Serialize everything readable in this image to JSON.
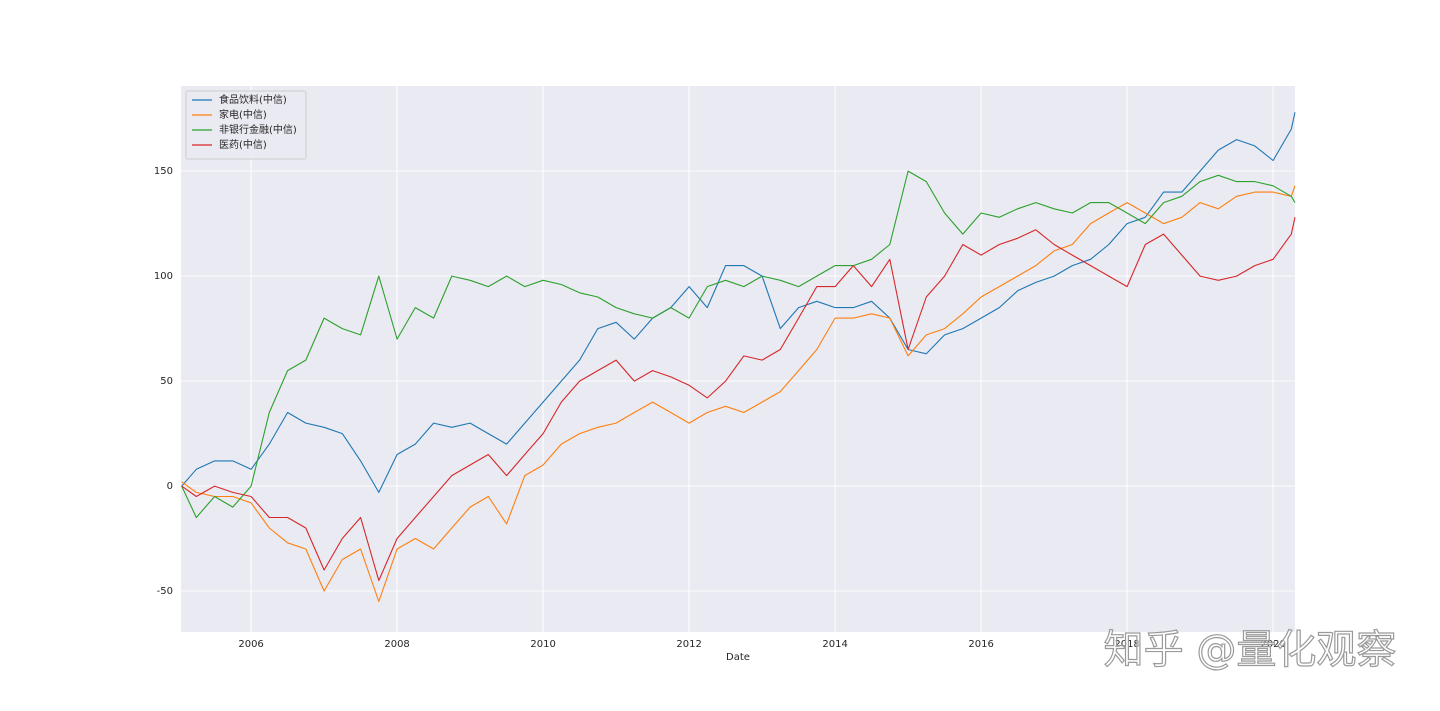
{
  "chart_data": {
    "type": "line",
    "x_label": "Date",
    "watermark": "知乎 @量化观察",
    "x": [
      2005.05,
      2005.25,
      2005.5,
      2005.75,
      2006,
      2006.25,
      2006.5,
      2006.75,
      2007,
      2007.25,
      2007.5,
      2007.75,
      2008,
      2008.25,
      2008.5,
      2008.75,
      2009,
      2009.25,
      2009.5,
      2009.75,
      2010,
      2010.25,
      2010.5,
      2010.75,
      2011,
      2011.25,
      2011.5,
      2011.75,
      2012,
      2012.25,
      2012.5,
      2012.75,
      2013,
      2013.25,
      2013.5,
      2013.75,
      2014,
      2014.25,
      2014.5,
      2014.75,
      2015,
      2015.25,
      2015.5,
      2015.75,
      2016,
      2016.25,
      2016.5,
      2016.75,
      2017,
      2017.25,
      2017.5,
      2017.75,
      2018,
      2018.25,
      2018.5,
      2018.75,
      2019,
      2019.25,
      2019.5,
      2019.75,
      2020,
      2020.25,
      2020.3
    ],
    "series": [
      {
        "name": "食品饮料(中信)",
        "color": "#1f77b4",
        "values": [
          0,
          8,
          12,
          12,
          8,
          20,
          35,
          30,
          28,
          25,
          12,
          -3,
          15,
          20,
          30,
          28,
          30,
          25,
          20,
          30,
          40,
          50,
          60,
          75,
          78,
          70,
          80,
          85,
          95,
          85,
          105,
          105,
          100,
          75,
          85,
          88,
          85,
          85,
          88,
          80,
          65,
          63,
          72,
          75,
          80,
          85,
          93,
          97,
          100,
          105,
          108,
          115,
          125,
          128,
          140,
          140,
          150,
          160,
          165,
          162,
          155,
          170,
          178
        ]
      },
      {
        "name": "家电(中信)",
        "color": "#ff7f0e",
        "values": [
          2,
          -3,
          -5,
          -5,
          -8,
          -20,
          -27,
          -30,
          -50,
          -35,
          -30,
          -55,
          -30,
          -25,
          -30,
          -20,
          -10,
          -5,
          -18,
          5,
          10,
          20,
          25,
          28,
          30,
          35,
          40,
          35,
          30,
          35,
          38,
          35,
          40,
          45,
          55,
          65,
          80,
          80,
          82,
          80,
          62,
          72,
          75,
          82,
          90,
          95,
          100,
          105,
          112,
          115,
          125,
          130,
          135,
          130,
          125,
          128,
          135,
          132,
          138,
          140,
          140,
          138,
          143
        ]
      },
      {
        "name": "非银行金融(中信)",
        "color": "#2ca02c",
        "values": [
          0,
          -15,
          -5,
          -10,
          0,
          35,
          55,
          60,
          80,
          75,
          72,
          100,
          70,
          85,
          80,
          100,
          98,
          95,
          100,
          95,
          98,
          96,
          92,
          90,
          85,
          82,
          80,
          85,
          80,
          95,
          98,
          95,
          100,
          98,
          95,
          100,
          105,
          105,
          108,
          115,
          150,
          145,
          130,
          120,
          130,
          128,
          132,
          135,
          132,
          130,
          135,
          135,
          130,
          125,
          135,
          138,
          145,
          148,
          145,
          145,
          143,
          138,
          135
        ]
      },
      {
        "name": "医药(中信)",
        "color": "#d62728",
        "values": [
          0,
          -5,
          0,
          -3,
          -5,
          -15,
          -15,
          -20,
          -40,
          -25,
          -15,
          -45,
          -25,
          -15,
          -5,
          5,
          10,
          15,
          5,
          15,
          25,
          40,
          50,
          55,
          60,
          50,
          55,
          52,
          48,
          42,
          50,
          62,
          60,
          65,
          80,
          95,
          95,
          105,
          95,
          108,
          65,
          90,
          100,
          115,
          110,
          115,
          118,
          122,
          115,
          110,
          105,
          100,
          95,
          115,
          120,
          110,
          100,
          98,
          100,
          105,
          108,
          120,
          128
        ]
      }
    ],
    "xlim": [
      2005.04,
      2020.3
    ],
    "xticks": [
      2006,
      2008,
      2010,
      2012,
      2014,
      2016,
      2018,
      2020
    ],
    "ylim": [
      -69.5,
      190.5
    ],
    "yticks": [
      -50,
      0,
      50,
      100,
      150
    ],
    "grid": true,
    "legend": "upper left"
  }
}
